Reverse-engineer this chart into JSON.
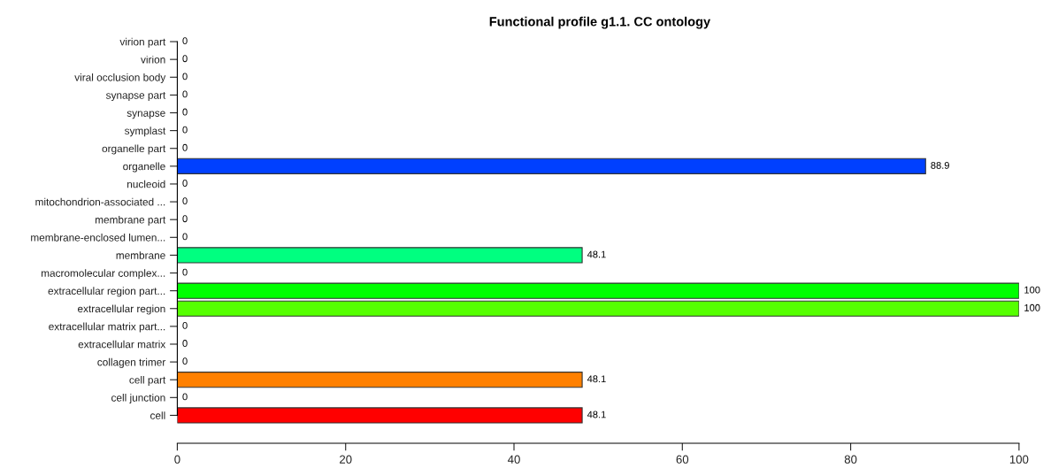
{
  "chart_data": {
    "type": "bar",
    "orientation": "horizontal",
    "title": "Functional profile g1.1. CC ontology",
    "categories": [
      "virion part",
      "virion",
      "viral occlusion body",
      "synapse part",
      "synapse",
      "symplast",
      "organelle part",
      "organelle",
      "nucleoid",
      "mitochondrion-associated ...",
      "membrane part",
      "membrane-enclosed lumen...",
      "membrane",
      "macromolecular complex...",
      "extracellular region part...",
      "extracellular region",
      "extracellular matrix part...",
      "extracellular matrix",
      "collagen trimer",
      "cell part",
      "cell junction",
      "cell"
    ],
    "values": [
      0,
      0,
      0,
      0,
      0,
      0,
      0,
      88.9,
      0,
      0,
      0,
      0,
      48.1,
      0,
      100,
      100,
      0,
      0,
      0,
      48.1,
      0,
      48.1
    ],
    "colors": [
      null,
      null,
      null,
      null,
      null,
      null,
      null,
      "#0040ff",
      null,
      null,
      null,
      null,
      "#00ff80",
      null,
      "#00ff00",
      "#55ff00",
      null,
      null,
      null,
      "#ff8000",
      null,
      "#ff0000"
    ],
    "xlim": [
      0,
      100
    ],
    "xticks": [
      0,
      20,
      40,
      60,
      80,
      100
    ],
    "data_labels": true,
    "grid": false,
    "legend": false
  }
}
